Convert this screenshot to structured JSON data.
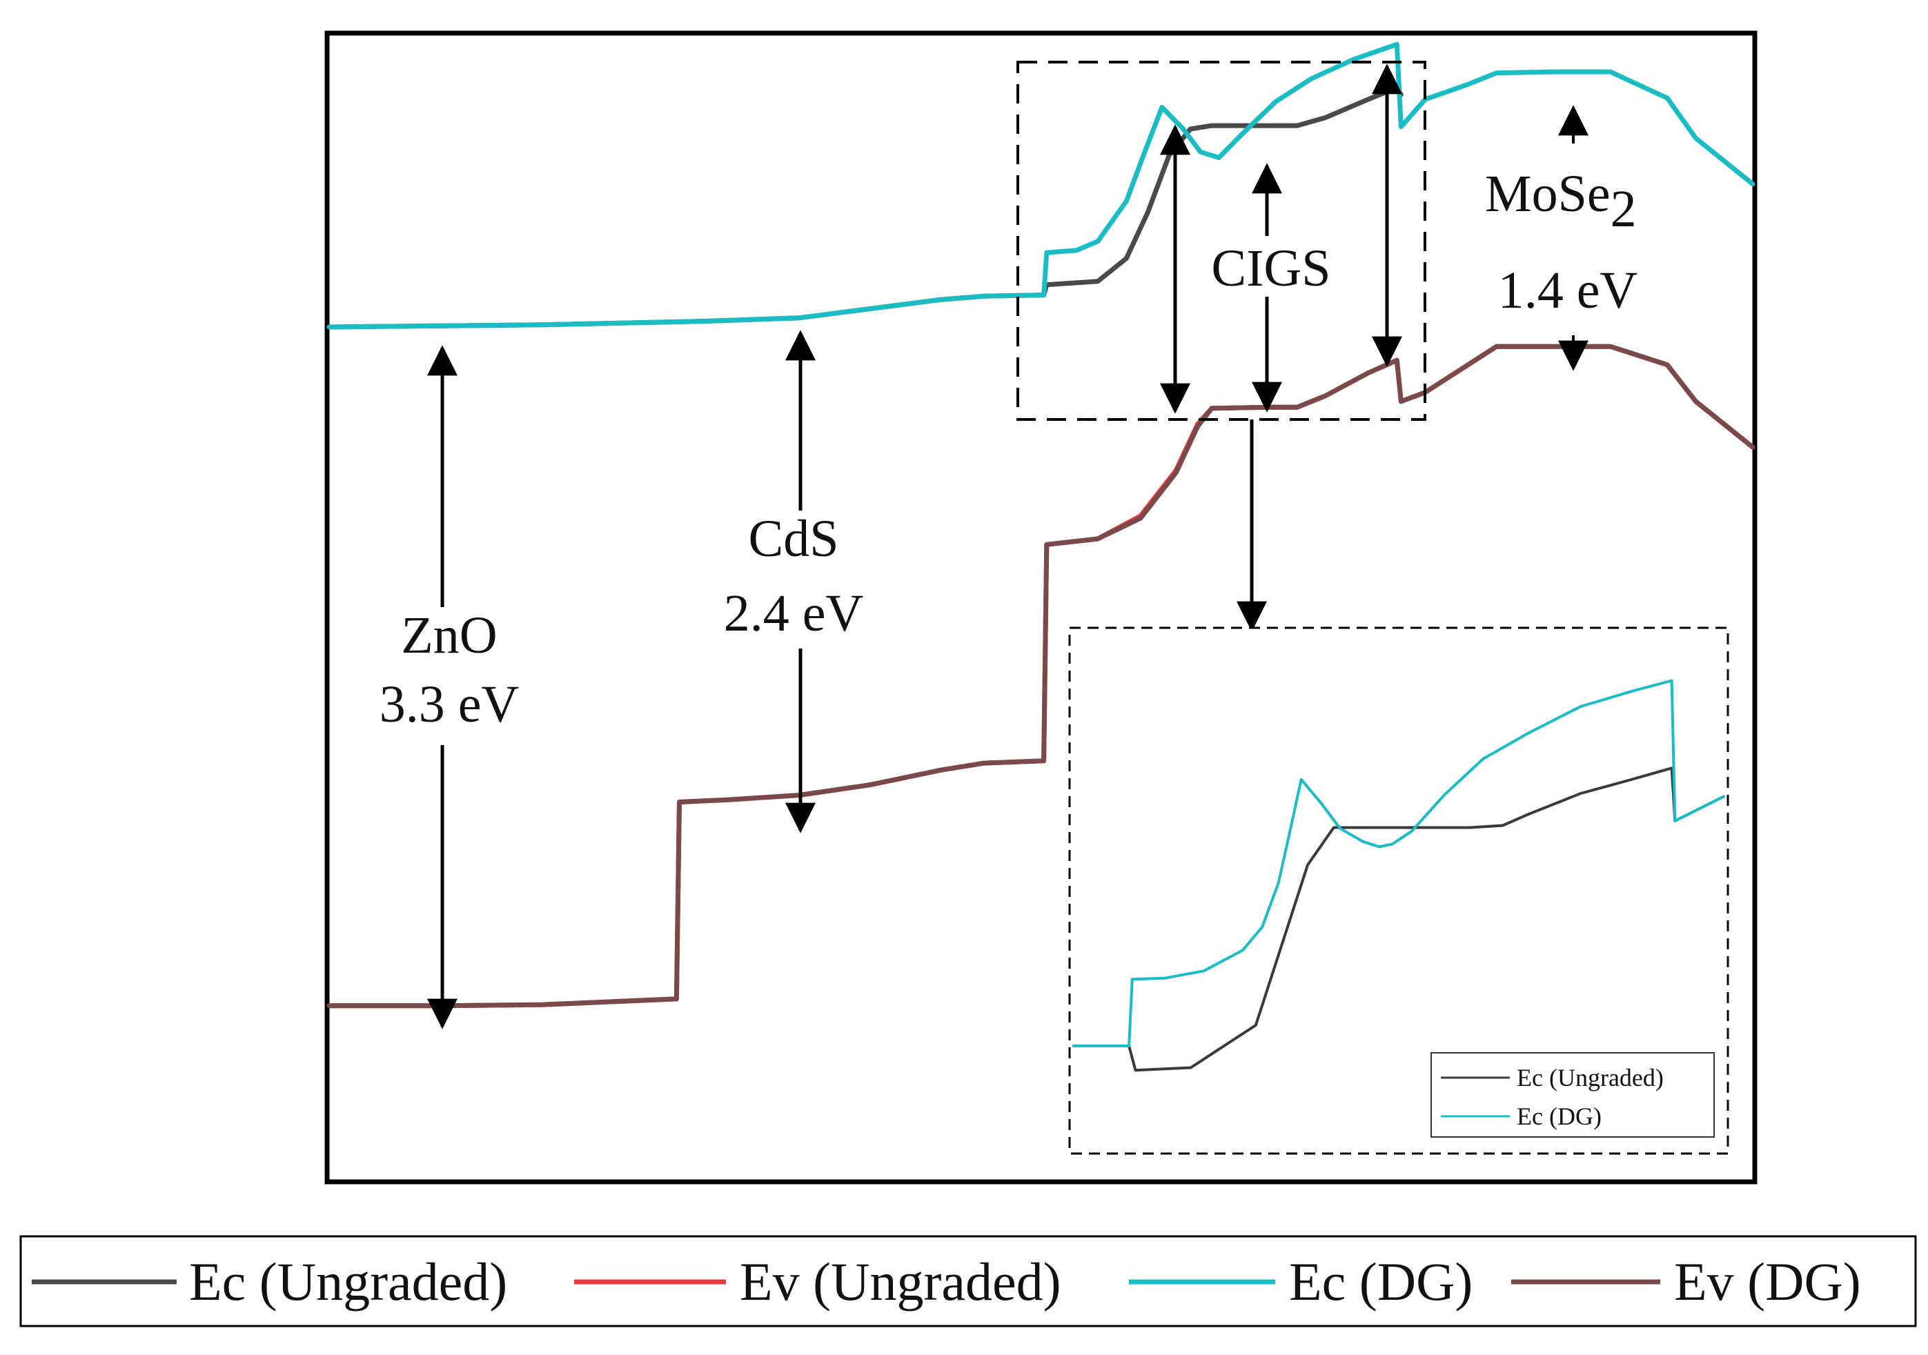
{
  "chart_data": {
    "type": "line",
    "title": "",
    "xlabel": "",
    "ylabel": "",
    "xlim": [
      0,
      100
    ],
    "ylim": [
      0,
      100
    ],
    "grid": false,
    "series": [
      {
        "name": "Ev (Ungraded)",
        "color": "#e83a3a",
        "x": [
          0,
          8,
          15,
          24.4,
          24.6,
          28,
          33,
          38,
          43,
          46,
          50.2,
          50.4,
          54,
          57,
          59.5,
          61,
          62,
          66,
          68,
          70,
          73,
          75,
          75.3,
          77,
          82,
          86,
          90,
          94,
          96,
          100
        ],
        "y": [
          15.2,
          15.2,
          15.3,
          15.8,
          33,
          33.2,
          33.6,
          34.5,
          35.8,
          36.4,
          36.6,
          55.5,
          56,
          58,
          62,
          66,
          67.4,
          67.5,
          67.5,
          68.5,
          70.5,
          71.6,
          68,
          68.8,
          72.8,
          72.8,
          72.8,
          71.2,
          68,
          64
        ]
      },
      {
        "name": "Ev (DG)",
        "color": "#7a4a4a",
        "x": [
          0,
          8,
          15,
          24.4,
          24.6,
          28,
          33,
          38,
          43,
          46,
          50.2,
          50.4,
          54,
          57,
          59.5,
          61,
          62,
          66,
          68,
          70,
          73,
          75,
          75.3,
          77,
          82,
          86,
          90,
          94,
          96,
          100
        ],
        "y": [
          15.2,
          15.2,
          15.3,
          15.8,
          33,
          33.2,
          33.6,
          34.5,
          35.8,
          36.4,
          36.6,
          55.5,
          56,
          57.8,
          61.8,
          65.8,
          67.4,
          67.5,
          67.5,
          68.5,
          70.5,
          71.6,
          68,
          68.8,
          72.8,
          72.8,
          72.8,
          71.2,
          68,
          64
        ]
      },
      {
        "name": "Ec (Ungraded)",
        "color": "#4a4a4a",
        "x": [
          0,
          15,
          26,
          33,
          38,
          43,
          46,
          50.2,
          50.4,
          54,
          56,
          57.5,
          59,
          60.5,
          62,
          66,
          68,
          70,
          73,
          75,
          75.3
        ],
        "y": [
          74.5,
          74.7,
          75,
          75.3,
          76.1,
          76.9,
          77.2,
          77.3,
          78.2,
          78.5,
          80.5,
          84.5,
          89.5,
          91.8,
          92.1,
          92.1,
          92.1,
          92.8,
          94.4,
          95.4,
          94.8
        ]
      },
      {
        "name": "Ec (DG)",
        "color": "#1bbcc4",
        "x": [
          0,
          15,
          26,
          33,
          38,
          43,
          46,
          50.2,
          50.4,
          52.5,
          54,
          56,
          57.2,
          58.5,
          60,
          61.2,
          62.5,
          64,
          66.5,
          69,
          72,
          75,
          75.3,
          77,
          80,
          82,
          86,
          90,
          94,
          96,
          100
        ],
        "y": [
          74.5,
          74.7,
          75,
          75.3,
          76.1,
          76.9,
          77.2,
          77.3,
          81,
          81.2,
          82,
          85.5,
          89.5,
          93.7,
          91.8,
          89.8,
          89.3,
          91.2,
          94.2,
          96.2,
          97.9,
          99.2,
          92,
          94.4,
          95.7,
          96.7,
          96.8,
          96.8,
          94.5,
          91,
          87
        ]
      }
    ],
    "inset": {
      "series": [
        {
          "name": "Ec (Ungraded)",
          "color": "#3a3a3a",
          "x": [
            0,
            8.5,
            9.5,
            18,
            28,
            36,
            40,
            45,
            50,
            61,
            66,
            70,
            78,
            85,
            92,
            92.5,
            100
          ],
          "y": [
            20,
            20,
            15.3,
            15.8,
            24,
            55,
            62.2,
            62.2,
            62.2,
            62.2,
            62.6,
            64.8,
            68.8,
            71.2,
            73.7,
            63.5,
            68.2
          ]
        },
        {
          "name": "Ec (DG)",
          "color": "#1bbcc4",
          "x": [
            0,
            8.5,
            9,
            14,
            20,
            26,
            29,
            31.5,
            33,
            35,
            38,
            41,
            44.5,
            47,
            49,
            52,
            57,
            63,
            70,
            78,
            86,
            92,
            92.5,
            100
          ],
          "y": [
            20,
            20,
            32.9,
            33.1,
            34.5,
            38.5,
            43,
            51.5,
            60,
            71.5,
            67,
            62,
            59.5,
            58.5,
            59,
            61.5,
            68.5,
            75.5,
            80.5,
            85.6,
            88.6,
            90.6,
            63.5,
            68.2
          ]
        }
      ],
      "legend": [
        "Ec (Ungraded)",
        "Ec (DG)"
      ]
    },
    "annotations": [
      {
        "layer": "ZnO",
        "band_gap": "3.3 eV"
      },
      {
        "layer": "CdS",
        "band_gap": "2.4 eV"
      },
      {
        "layer": "CIGS"
      },
      {
        "layer": "MoSe",
        "subscript": "2",
        "band_gap": "1.4 eV"
      }
    ],
    "legend": [
      "Ec (Ungraded)",
      "Ev (Ungraded)",
      "Ec (DG)",
      "Ev (DG)"
    ],
    "legend_position": "bottom"
  }
}
